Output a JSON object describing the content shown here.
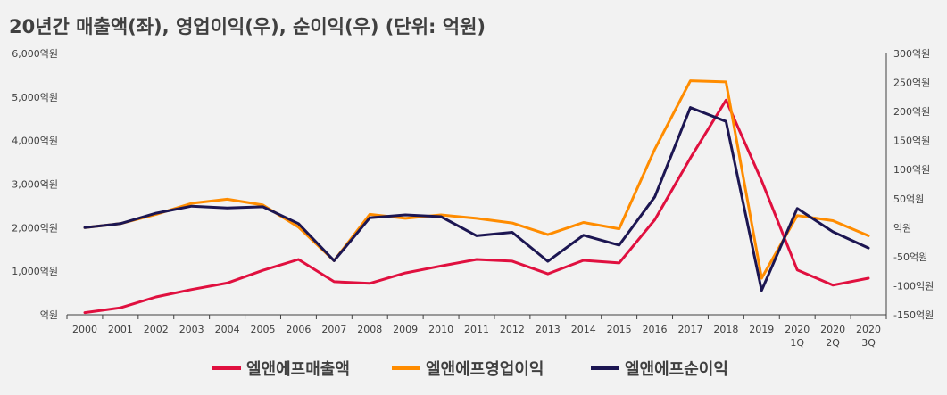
{
  "chart_data": {
    "type": "line",
    "title": "20년간 매출액(좌), 영업이익(우), 순이익(우) (단위: 억원)",
    "categories": [
      "2000",
      "2001",
      "2002",
      "2003",
      "2004",
      "2005",
      "2006",
      "2007",
      "2008",
      "2009",
      "2010",
      "2011",
      "2012",
      "2013",
      "2014",
      "2015",
      "2016",
      "2017",
      "2018",
      "2019",
      "2020\n1Q",
      "2020\n2Q",
      "2020\n3Q"
    ],
    "y_left": {
      "ylim": [
        0,
        6000
      ],
      "ticks": [
        0,
        1000,
        2000,
        3000,
        4000,
        5000,
        6000
      ],
      "tick_labels": [
        "억원",
        "1,000억원",
        "2,000억원",
        "3,000억원",
        "4,000억원",
        "5,000억원",
        "6,000억원"
      ]
    },
    "y_right": {
      "ylim": [
        -150,
        300
      ],
      "ticks": [
        -150,
        -100,
        -50,
        0,
        50,
        100,
        150,
        200,
        250,
        300
      ],
      "tick_labels": [
        "-150억원",
        "-100억원",
        "-50억원",
        "억원",
        "50억원",
        "100억원",
        "150억원",
        "200억원",
        "250억원",
        "300억원"
      ]
    },
    "series": [
      {
        "name": "엘앤에프매출액",
        "axis": "left",
        "color": "#e0103f",
        "values": [
          50,
          160,
          410,
          580,
          730,
          1020,
          1270,
          760,
          720,
          960,
          1120,
          1270,
          1230,
          940,
          1250,
          1190,
          2180,
          3600,
          4930,
          3080,
          1030,
          680,
          840
        ]
      },
      {
        "name": "엘앤에프영업이익",
        "axis": "right",
        "color": "#ff8c00",
        "values": [
          0,
          7,
          23,
          42,
          49,
          39,
          1,
          -57,
          23,
          16,
          22,
          16,
          8,
          -12,
          9,
          -2,
          135,
          253,
          251,
          -87,
          21,
          12,
          -14
        ]
      },
      {
        "name": "엘앤에프순이익",
        "axis": "right",
        "color": "#1c1652",
        "values": [
          0,
          7,
          25,
          37,
          34,
          36,
          7,
          -57,
          17,
          22,
          19,
          -14,
          -8,
          -58,
          -13,
          -30,
          53,
          207,
          183,
          -108,
          33,
          -7,
          -35
        ]
      }
    ],
    "legend_position": "bottom",
    "grid": false
  }
}
